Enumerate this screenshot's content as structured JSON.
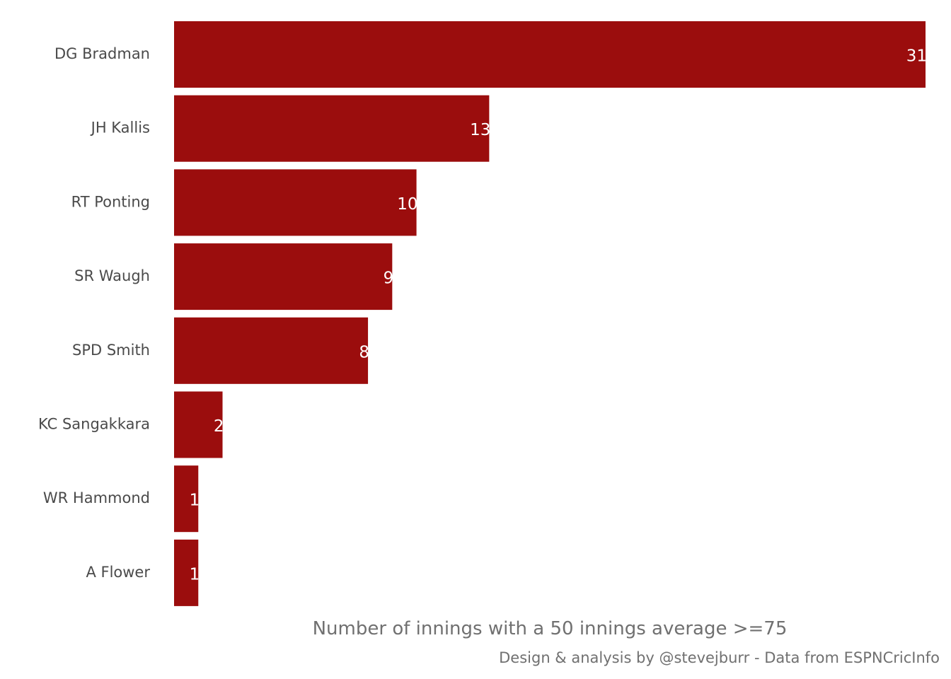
{
  "chart_data": {
    "type": "bar",
    "orientation": "horizontal",
    "categories": [
      "DG Bradman",
      "JH Kallis",
      "RT Ponting",
      "SR Waugh",
      "SPD Smith",
      "KC Sangakkara",
      "WR Hammond",
      "A Flower"
    ],
    "values": [
      31,
      13,
      10,
      9,
      8,
      2,
      1,
      1
    ],
    "xlabel": "Number of innings with a 50 innings average >=75",
    "ylabel": "",
    "xlim": [
      0,
      31
    ],
    "grid": false,
    "data_labels": true,
    "bar_color": "#9b0d0d"
  },
  "caption": "Design & analysis by @stevejburr - Data from ESPNCricInfo"
}
